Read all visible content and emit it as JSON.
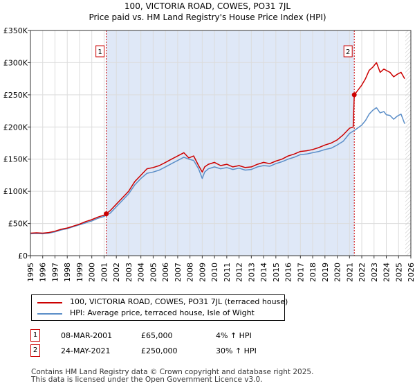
{
  "title_line1": "100, VICTORIA ROAD, COWES, PO31 7JL",
  "title_line2": "Price paid vs. HM Land Registry's House Price Index (HPI)",
  "colors": {
    "property": "#cc0000",
    "hpi": "#5b8ec8",
    "shade": "#dfe8f7",
    "grid": "#dcdcdc"
  },
  "legend": {
    "property": "100, VICTORIA ROAD, COWES, PO31 7JL (terraced house)",
    "hpi": "HPI: Average price, terraced house, Isle of Wight"
  },
  "transactions": [
    {
      "num": "1",
      "date": "08-MAR-2001",
      "price": "£65,000",
      "hpi": "4% ↑ HPI"
    },
    {
      "num": "2",
      "date": "24-MAY-2021",
      "price": "£250,000",
      "hpi": "30% ↑ HPI"
    }
  ],
  "footer": {
    "line1": "Contains HM Land Registry data © Crown copyright and database right 2025.",
    "line2": "This data is licensed under the Open Government Licence v3.0."
  },
  "chart_data": {
    "type": "line",
    "xlim": [
      1995,
      2026
    ],
    "ylim": [
      0,
      350000
    ],
    "y_ticks": [
      0,
      50000,
      100000,
      150000,
      200000,
      250000,
      300000,
      350000
    ],
    "y_tick_labels": [
      "£0",
      "£50K",
      "£100K",
      "£150K",
      "£200K",
      "£250K",
      "£300K",
      "£350K"
    ],
    "x_ticks": [
      1995,
      1996,
      1997,
      1998,
      1999,
      2000,
      2001,
      2002,
      2003,
      2004,
      2005,
      2006,
      2007,
      2008,
      2009,
      2010,
      2011,
      2012,
      2013,
      2014,
      2015,
      2016,
      2017,
      2018,
      2019,
      2020,
      2021,
      2022,
      2023,
      2024,
      2025,
      2026
    ],
    "x_tick_labels": [
      "1995",
      "1996",
      "1997",
      "1998",
      "1999",
      "2000",
      "2001",
      "2002",
      "2003",
      "2004",
      "2005",
      "2006",
      "2007",
      "2008",
      "2009",
      "2010",
      "2011",
      "2012",
      "2013",
      "2014",
      "2015",
      "2016",
      "2017",
      "2018",
      "2019",
      "2020",
      "2021",
      "2022",
      "2023",
      "2024",
      "2025",
      "2026"
    ],
    "shaded_range": [
      2001.18,
      2021.39
    ],
    "markers": [
      {
        "label": "1",
        "x": 2001.18,
        "y": 65000
      },
      {
        "label": "2",
        "x": 2021.39,
        "y": 250000
      }
    ],
    "series": [
      {
        "name": "100, VICTORIA ROAD, COWES, PO31 7JL (terraced house)",
        "x": [
          1995,
          1995.5,
          1996,
          1996.5,
          1997,
          1997.5,
          1998,
          1998.5,
          1999,
          1999.5,
          2000,
          2000.5,
          2001,
          2001.18,
          2001.5,
          2002,
          2002.5,
          2003,
          2003.5,
          2004,
          2004.5,
          2005,
          2005.5,
          2006,
          2006.5,
          2007,
          2007.5,
          2007.9,
          2008.3,
          2008.7,
          2009,
          2009.2,
          2009.5,
          2010,
          2010.5,
          2011,
          2011.5,
          2012,
          2012.5,
          2013,
          2013.5,
          2014,
          2014.5,
          2015,
          2015.5,
          2016,
          2016.5,
          2017,
          2017.5,
          2018,
          2018.5,
          2019,
          2019.5,
          2020,
          2020.5,
          2021,
          2021.3,
          2021.39,
          2021.6,
          2022,
          2022.3,
          2022.6,
          2022.9,
          2023.2,
          2023.5,
          2023.8,
          2024,
          2024.3,
          2024.6,
          2024.9,
          2025.2,
          2025.5
        ],
        "y": [
          35000,
          35500,
          35000,
          36000,
          38000,
          41000,
          43000,
          46000,
          49000,
          53000,
          56000,
          60000,
          63000,
          65000,
          70000,
          80000,
          90000,
          100000,
          115000,
          125000,
          135000,
          137000,
          140000,
          145000,
          150000,
          155000,
          160000,
          152000,
          155000,
          140000,
          130000,
          138000,
          142000,
          145000,
          140000,
          142000,
          138000,
          140000,
          137000,
          138000,
          142000,
          145000,
          143000,
          147000,
          150000,
          155000,
          158000,
          162000,
          163000,
          165000,
          168000,
          172000,
          175000,
          180000,
          188000,
          198000,
          200000,
          250000,
          255000,
          265000,
          275000,
          288000,
          293000,
          300000,
          285000,
          290000,
          288000,
          285000,
          278000,
          282000,
          285000,
          275000
        ]
      },
      {
        "name": "HPI: Average price, terraced house, Isle of Wight",
        "x": [
          1995,
          1995.5,
          1996,
          1996.5,
          1997,
          1997.5,
          1998,
          1998.5,
          1999,
          1999.5,
          2000,
          2000.5,
          2001,
          2001.5,
          2002,
          2002.5,
          2003,
          2003.5,
          2004,
          2004.5,
          2005,
          2005.5,
          2006,
          2006.5,
          2007,
          2007.5,
          2007.9,
          2008.3,
          2008.7,
          2009,
          2009.2,
          2009.5,
          2010,
          2010.5,
          2011,
          2011.5,
          2012,
          2012.5,
          2013,
          2013.5,
          2014,
          2014.5,
          2015,
          2015.5,
          2016,
          2016.5,
          2017,
          2017.5,
          2018,
          2018.5,
          2019,
          2019.5,
          2020,
          2020.5,
          2021,
          2021.5,
          2022,
          2022.3,
          2022.6,
          2022.9,
          2023.2,
          2023.5,
          2023.8,
          2024,
          2024.3,
          2024.6,
          2024.9,
          2025.2,
          2025.5
        ],
        "y": [
          34000,
          34500,
          34000,
          35000,
          37000,
          40000,
          42000,
          45000,
          48000,
          51000,
          54000,
          58000,
          61000,
          66000,
          76000,
          86000,
          96000,
          110000,
          120000,
          128000,
          130000,
          133000,
          138000,
          143000,
          148000,
          153000,
          150000,
          148000,
          135000,
          120000,
          130000,
          135000,
          138000,
          135000,
          137000,
          134000,
          136000,
          133000,
          134000,
          138000,
          140000,
          139000,
          143000,
          146000,
          150000,
          153000,
          157000,
          158000,
          160000,
          162000,
          165000,
          167000,
          172000,
          178000,
          190000,
          196000,
          203000,
          210000,
          220000,
          226000,
          230000,
          222000,
          224000,
          219000,
          218000,
          212000,
          217000,
          220000,
          205000
        ]
      }
    ]
  }
}
